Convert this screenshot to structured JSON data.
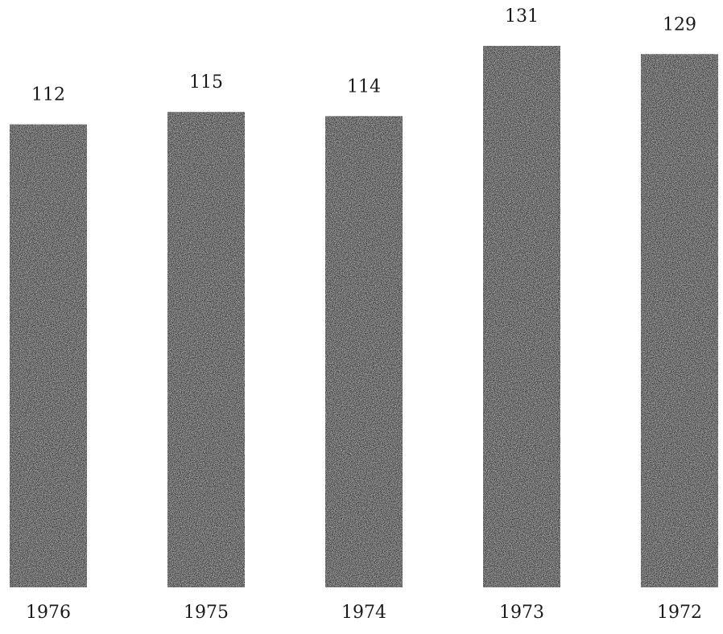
{
  "chart_data": {
    "type": "bar",
    "categories": [
      "1976",
      "1975",
      "1974",
      "1973",
      "1972"
    ],
    "values": [
      112,
      115,
      114,
      131,
      129
    ],
    "ylim": [
      0,
      131
    ],
    "grid": false,
    "bar_color": "#3c3c3c"
  }
}
